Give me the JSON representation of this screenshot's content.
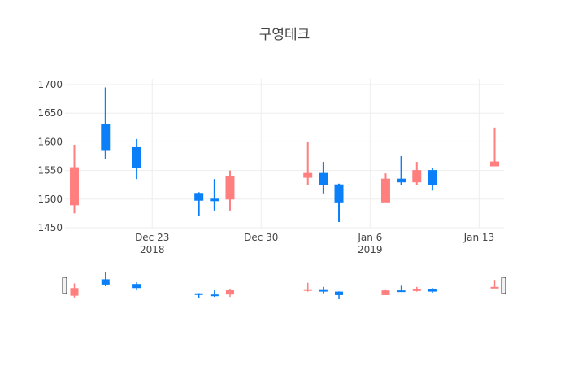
{
  "colors": {
    "increasing": "#ff7f7f",
    "decreasing": "#0a7ff7",
    "grid": "#eeeeee",
    "axis_text": "#444444",
    "background": "#ffffff"
  },
  "chart_data": {
    "type": "candlestick",
    "title": "구영테크",
    "xlabel": "",
    "ylabel": "",
    "ylim": [
      1450,
      1710
    ],
    "grid": true,
    "range_slider": true,
    "y_ticks": [
      1450,
      1500,
      1550,
      1600,
      1650,
      1700
    ],
    "x_ticks": [
      {
        "date": "2018-12-23",
        "label": "Dec 23",
        "sublabel": "2018"
      },
      {
        "date": "2018-12-30",
        "label": "Dec 30",
        "sublabel": ""
      },
      {
        "date": "2019-01-06",
        "label": "Jan 6",
        "sublabel": "2019"
      },
      {
        "date": "2019-01-13",
        "label": "Jan 13",
        "sublabel": ""
      }
    ],
    "x_range": [
      "2018-12-18",
      "2019-01-14"
    ],
    "candles": [
      {
        "date": "2018-12-18",
        "open": 1490,
        "high": 1595,
        "low": 1475,
        "close": 1555
      },
      {
        "date": "2018-12-20",
        "open": 1630,
        "high": 1695,
        "low": 1570,
        "close": 1585
      },
      {
        "date": "2018-12-22",
        "open": 1590,
        "high": 1605,
        "low": 1535,
        "close": 1555
      },
      {
        "date": "2018-12-26",
        "open": 1510,
        "high": 1512,
        "low": 1470,
        "close": 1498
      },
      {
        "date": "2018-12-27",
        "open": 1500,
        "high": 1535,
        "low": 1480,
        "close": 1498
      },
      {
        "date": "2018-12-28",
        "open": 1500,
        "high": 1550,
        "low": 1480,
        "close": 1540
      },
      {
        "date": "2019-01-02",
        "open": 1538,
        "high": 1600,
        "low": 1525,
        "close": 1545
      },
      {
        "date": "2019-01-03",
        "open": 1545,
        "high": 1565,
        "low": 1510,
        "close": 1525
      },
      {
        "date": "2019-01-04",
        "open": 1525,
        "high": 1527,
        "low": 1460,
        "close": 1495
      },
      {
        "date": "2019-01-07",
        "open": 1495,
        "high": 1545,
        "low": 1495,
        "close": 1535
      },
      {
        "date": "2019-01-08",
        "open": 1535,
        "high": 1575,
        "low": 1525,
        "close": 1530
      },
      {
        "date": "2019-01-09",
        "open": 1530,
        "high": 1565,
        "low": 1525,
        "close": 1550
      },
      {
        "date": "2019-01-10",
        "open": 1550,
        "high": 1555,
        "low": 1515,
        "close": 1525
      },
      {
        "date": "2019-01-14",
        "open": 1558,
        "high": 1625,
        "low": 1558,
        "close": 1565
      }
    ]
  }
}
